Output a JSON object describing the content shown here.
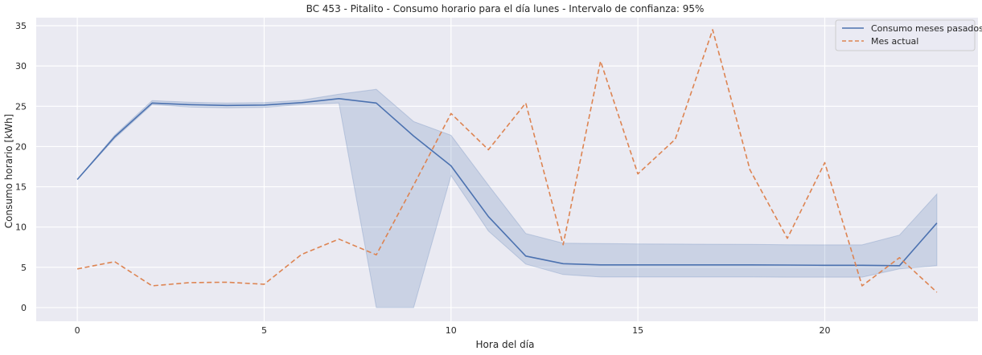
{
  "chart_data": {
    "type": "line",
    "title": "BC 453 - Pitalito - Consumo horario para el día lunes - Intervalo de confianza: 95%",
    "xlabel": "Hora del día",
    "ylabel": "Consumo horario [kWh]",
    "xlim": [
      -1.1,
      24.1
    ],
    "ylim": [
      -1.7,
      36.0
    ],
    "xticks": [
      0,
      5,
      10,
      15,
      20
    ],
    "yticks": [
      0,
      5,
      10,
      15,
      20,
      25,
      30,
      35
    ],
    "grid": true,
    "legend_position": "top-right",
    "x": [
      0,
      1,
      2,
      3,
      4,
      5,
      6,
      7,
      8,
      9,
      10,
      11,
      12,
      13,
      14,
      15,
      16,
      17,
      18,
      19,
      20,
      21,
      22,
      23
    ],
    "series": [
      {
        "name": "Consumo meses pasados",
        "color": "#4c72b0",
        "style": "solid",
        "values": [
          15.9,
          21.2,
          25.4,
          25.2,
          25.1,
          25.15,
          25.45,
          25.95,
          25.4,
          21.3,
          17.6,
          11.3,
          6.4,
          5.45,
          5.3,
          5.3,
          5.3,
          5.3,
          5.3,
          5.28,
          5.25,
          5.25,
          5.2,
          10.5
        ],
        "ci_lower": [
          15.9,
          21.0,
          25.2,
          24.9,
          24.8,
          24.85,
          25.2,
          25.4,
          0.0,
          0.0,
          16.4,
          9.5,
          5.4,
          4.1,
          3.8,
          3.8,
          3.8,
          3.8,
          3.8,
          3.78,
          3.78,
          3.78,
          4.8,
          5.2
        ],
        "ci_upper": [
          15.9,
          21.4,
          25.7,
          25.5,
          25.4,
          25.45,
          25.75,
          26.5,
          27.1,
          23.1,
          21.4,
          15.2,
          9.2,
          8.0,
          7.95,
          7.9,
          7.88,
          7.86,
          7.84,
          7.8,
          7.78,
          7.78,
          9.0,
          14.1
        ]
      },
      {
        "name": "Mes actual",
        "color": "#dd8452",
        "style": "dashed",
        "values": [
          4.8,
          5.7,
          2.7,
          3.1,
          3.15,
          2.9,
          6.6,
          8.5,
          6.55,
          15.2,
          24.1,
          19.6,
          25.4,
          7.8,
          30.6,
          16.6,
          20.9,
          34.5,
          17.1,
          8.6,
          18.0,
          2.7,
          6.2,
          1.9
        ]
      }
    ]
  }
}
